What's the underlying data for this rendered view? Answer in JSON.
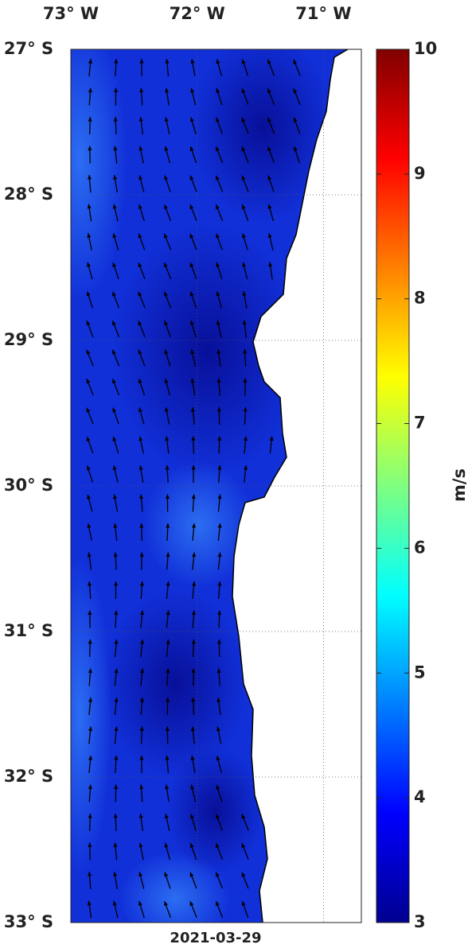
{
  "map": {
    "date": "2021-03-29",
    "xlim": [
      -73,
      -70.7
    ],
    "ylim": [
      -33,
      -27
    ],
    "xticks": [
      {
        "value": -73,
        "label": "73° W"
      },
      {
        "value": -72,
        "label": "72° W"
      },
      {
        "value": -71,
        "label": "71° W"
      }
    ],
    "yticks": [
      {
        "value": -27,
        "label": "27° S"
      },
      {
        "value": -28,
        "label": "28° S"
      },
      {
        "value": -29,
        "label": "29° S"
      },
      {
        "value": -30,
        "label": "30° S"
      },
      {
        "value": -31,
        "label": "31° S"
      },
      {
        "value": -32,
        "label": "32° S"
      },
      {
        "value": -33,
        "label": "33° S"
      }
    ],
    "grid": true
  },
  "colorbar": {
    "label": "m/s",
    "lim": [
      3,
      10
    ],
    "ticks": [
      3,
      4,
      5,
      6,
      7,
      8,
      9,
      10
    ]
  }
}
